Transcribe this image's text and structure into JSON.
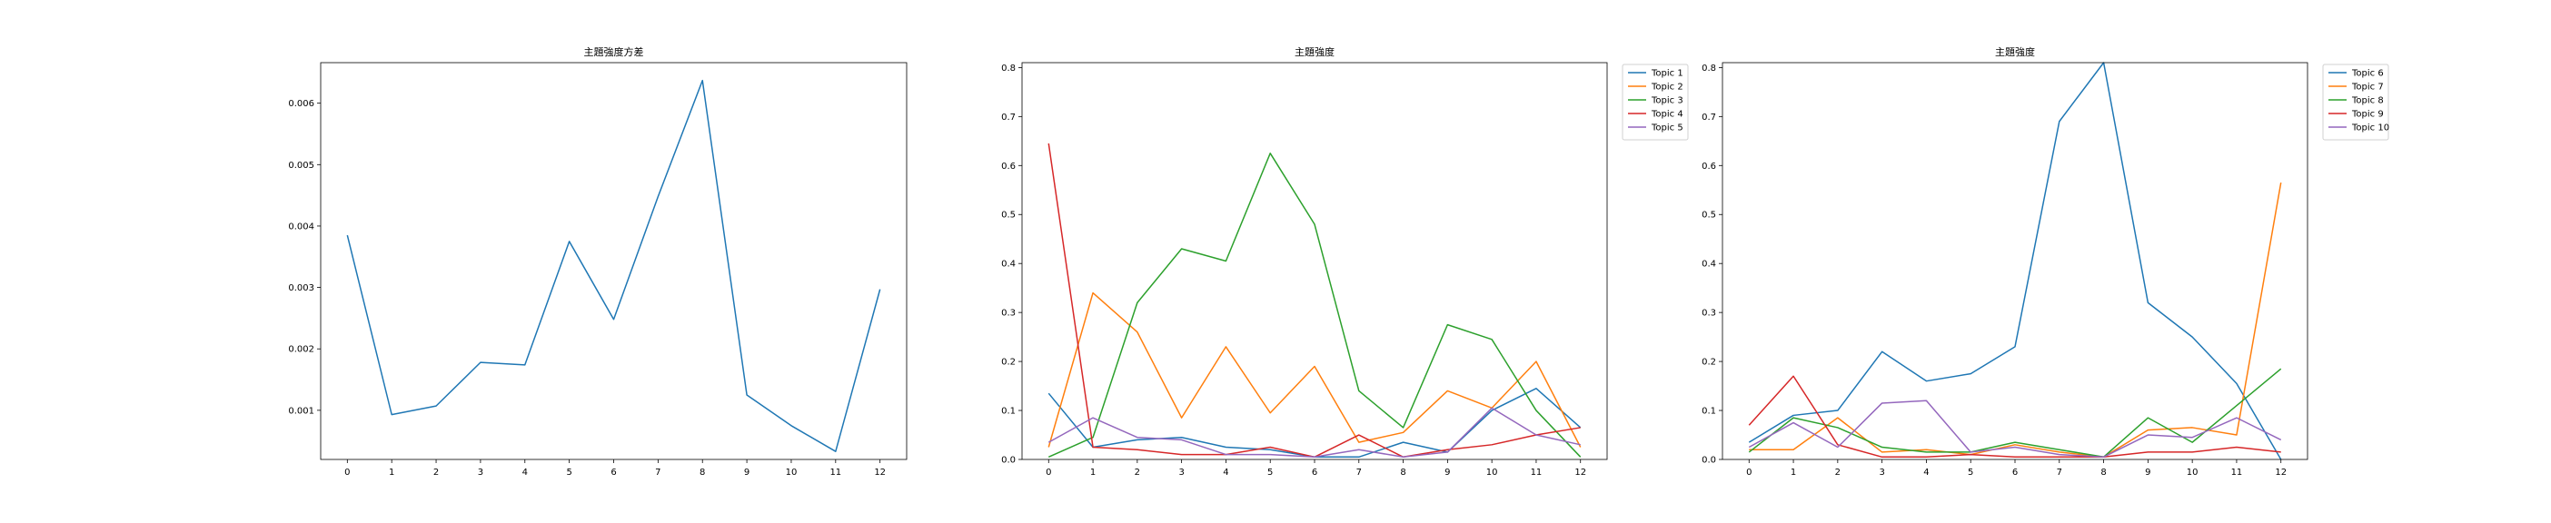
{
  "chart_data": [
    {
      "type": "line",
      "title": "主題強度方差",
      "xlabel": "",
      "ylabel": "",
      "x": [
        0,
        1,
        2,
        3,
        4,
        5,
        6,
        7,
        8,
        9,
        10,
        11,
        12
      ],
      "xlim": [
        -0.6,
        12.6
      ],
      "ylim": [
        0.0002,
        0.00666
      ],
      "xticks": [
        0,
        1,
        2,
        3,
        4,
        5,
        6,
        7,
        8,
        9,
        10,
        11,
        12
      ],
      "yticks": [
        0.001,
        0.002,
        0.003,
        0.004,
        0.005,
        0.006
      ],
      "ytick_labels": [
        "0.001",
        "0.002",
        "0.003",
        "0.004",
        "0.005",
        "0.006"
      ],
      "legend": null,
      "grid": false,
      "series": [
        {
          "name": "",
          "color": "#1f77b4",
          "values": [
            0.00385,
            0.00093,
            0.00107,
            0.00178,
            0.00174,
            0.00375,
            0.00248,
            0.00448,
            0.00637,
            0.00125,
            0.00075,
            0.00033,
            0.00297
          ]
        }
      ]
    },
    {
      "type": "line",
      "title": "主題強度",
      "xlabel": "",
      "ylabel": "",
      "x": [
        0,
        1,
        2,
        3,
        4,
        5,
        6,
        7,
        8,
        9,
        10,
        11,
        12
      ],
      "xlim": [
        -0.6,
        12.6
      ],
      "ylim": [
        0,
        0.81
      ],
      "xticks": [
        0,
        1,
        2,
        3,
        4,
        5,
        6,
        7,
        8,
        9,
        10,
        11,
        12
      ],
      "yticks": [
        0,
        0.1,
        0.2,
        0.3,
        0.4,
        0.5,
        0.6,
        0.7,
        0.8
      ],
      "ytick_labels": [
        "0.0",
        "0.1",
        "0.2",
        "0.3",
        "0.4",
        "0.5",
        "0.6",
        "0.7",
        "0.8"
      ],
      "legend": "outside-top-right",
      "grid": false,
      "series": [
        {
          "name": "Topic 1",
          "color": "#1f77b4",
          "values": [
            0.135,
            0.025,
            0.04,
            0.045,
            0.025,
            0.02,
            0.005,
            0.005,
            0.035,
            0.015,
            0.1,
            0.145,
            0.065
          ]
        },
        {
          "name": "Topic 2",
          "color": "#ff7f0e",
          "values": [
            0.025,
            0.34,
            0.26,
            0.085,
            0.23,
            0.095,
            0.19,
            0.035,
            0.055,
            0.14,
            0.105,
            0.2,
            0.025
          ]
        },
        {
          "name": "Topic 3",
          "color": "#2ca02c",
          "values": [
            0.005,
            0.045,
            0.32,
            0.43,
            0.405,
            0.625,
            0.48,
            0.14,
            0.065,
            0.275,
            0.245,
            0.1,
            0.005
          ]
        },
        {
          "name": "Topic 4",
          "color": "#d62728",
          "values": [
            0.645,
            0.025,
            0.02,
            0.01,
            0.01,
            0.025,
            0.005,
            0.05,
            0.005,
            0.02,
            0.03,
            0.05,
            0.065
          ]
        },
        {
          "name": "Topic 5",
          "color": "#9467bd",
          "values": [
            0.035,
            0.085,
            0.045,
            0.04,
            0.01,
            0.01,
            0.005,
            0.02,
            0.005,
            0.015,
            0.105,
            0.05,
            0.03
          ]
        }
      ]
    },
    {
      "type": "line",
      "title": "主題強度",
      "xlabel": "",
      "ylabel": "",
      "x": [
        0,
        1,
        2,
        3,
        4,
        5,
        6,
        7,
        8,
        9,
        10,
        11,
        12
      ],
      "xlim": [
        -0.6,
        12.6
      ],
      "ylim": [
        0,
        0.81
      ],
      "xticks": [
        0,
        1,
        2,
        3,
        4,
        5,
        6,
        7,
        8,
        9,
        10,
        11,
        12
      ],
      "yticks": [
        0,
        0.1,
        0.2,
        0.3,
        0.4,
        0.5,
        0.6,
        0.7,
        0.8
      ],
      "ytick_labels": [
        "0.0",
        "0.1",
        "0.2",
        "0.3",
        "0.4",
        "0.5",
        "0.6",
        "0.7",
        "0.8"
      ],
      "legend": "outside-top-right",
      "grid": false,
      "series": [
        {
          "name": "Topic 6",
          "color": "#1f77b4",
          "values": [
            0.035,
            0.09,
            0.1,
            0.22,
            0.16,
            0.175,
            0.23,
            0.69,
            0.81,
            0.32,
            0.25,
            0.155,
            0.0
          ]
        },
        {
          "name": "Topic 7",
          "color": "#ff7f0e",
          "values": [
            0.02,
            0.02,
            0.085,
            0.015,
            0.02,
            0.01,
            0.03,
            0.015,
            0.005,
            0.06,
            0.065,
            0.05,
            0.565
          ]
        },
        {
          "name": "Topic 8",
          "color": "#2ca02c",
          "values": [
            0.015,
            0.085,
            0.065,
            0.025,
            0.015,
            0.015,
            0.035,
            0.02,
            0.005,
            0.085,
            0.035,
            0.11,
            0.185
          ]
        },
        {
          "name": "Topic 9",
          "color": "#d62728",
          "values": [
            0.07,
            0.17,
            0.03,
            0.005,
            0.005,
            0.01,
            0.005,
            0.005,
            0.005,
            0.015,
            0.015,
            0.025,
            0.015
          ]
        },
        {
          "name": "Topic 10",
          "color": "#9467bd",
          "values": [
            0.025,
            0.075,
            0.025,
            0.115,
            0.12,
            0.015,
            0.025,
            0.01,
            0.005,
            0.05,
            0.045,
            0.085,
            0.04
          ]
        }
      ]
    }
  ]
}
